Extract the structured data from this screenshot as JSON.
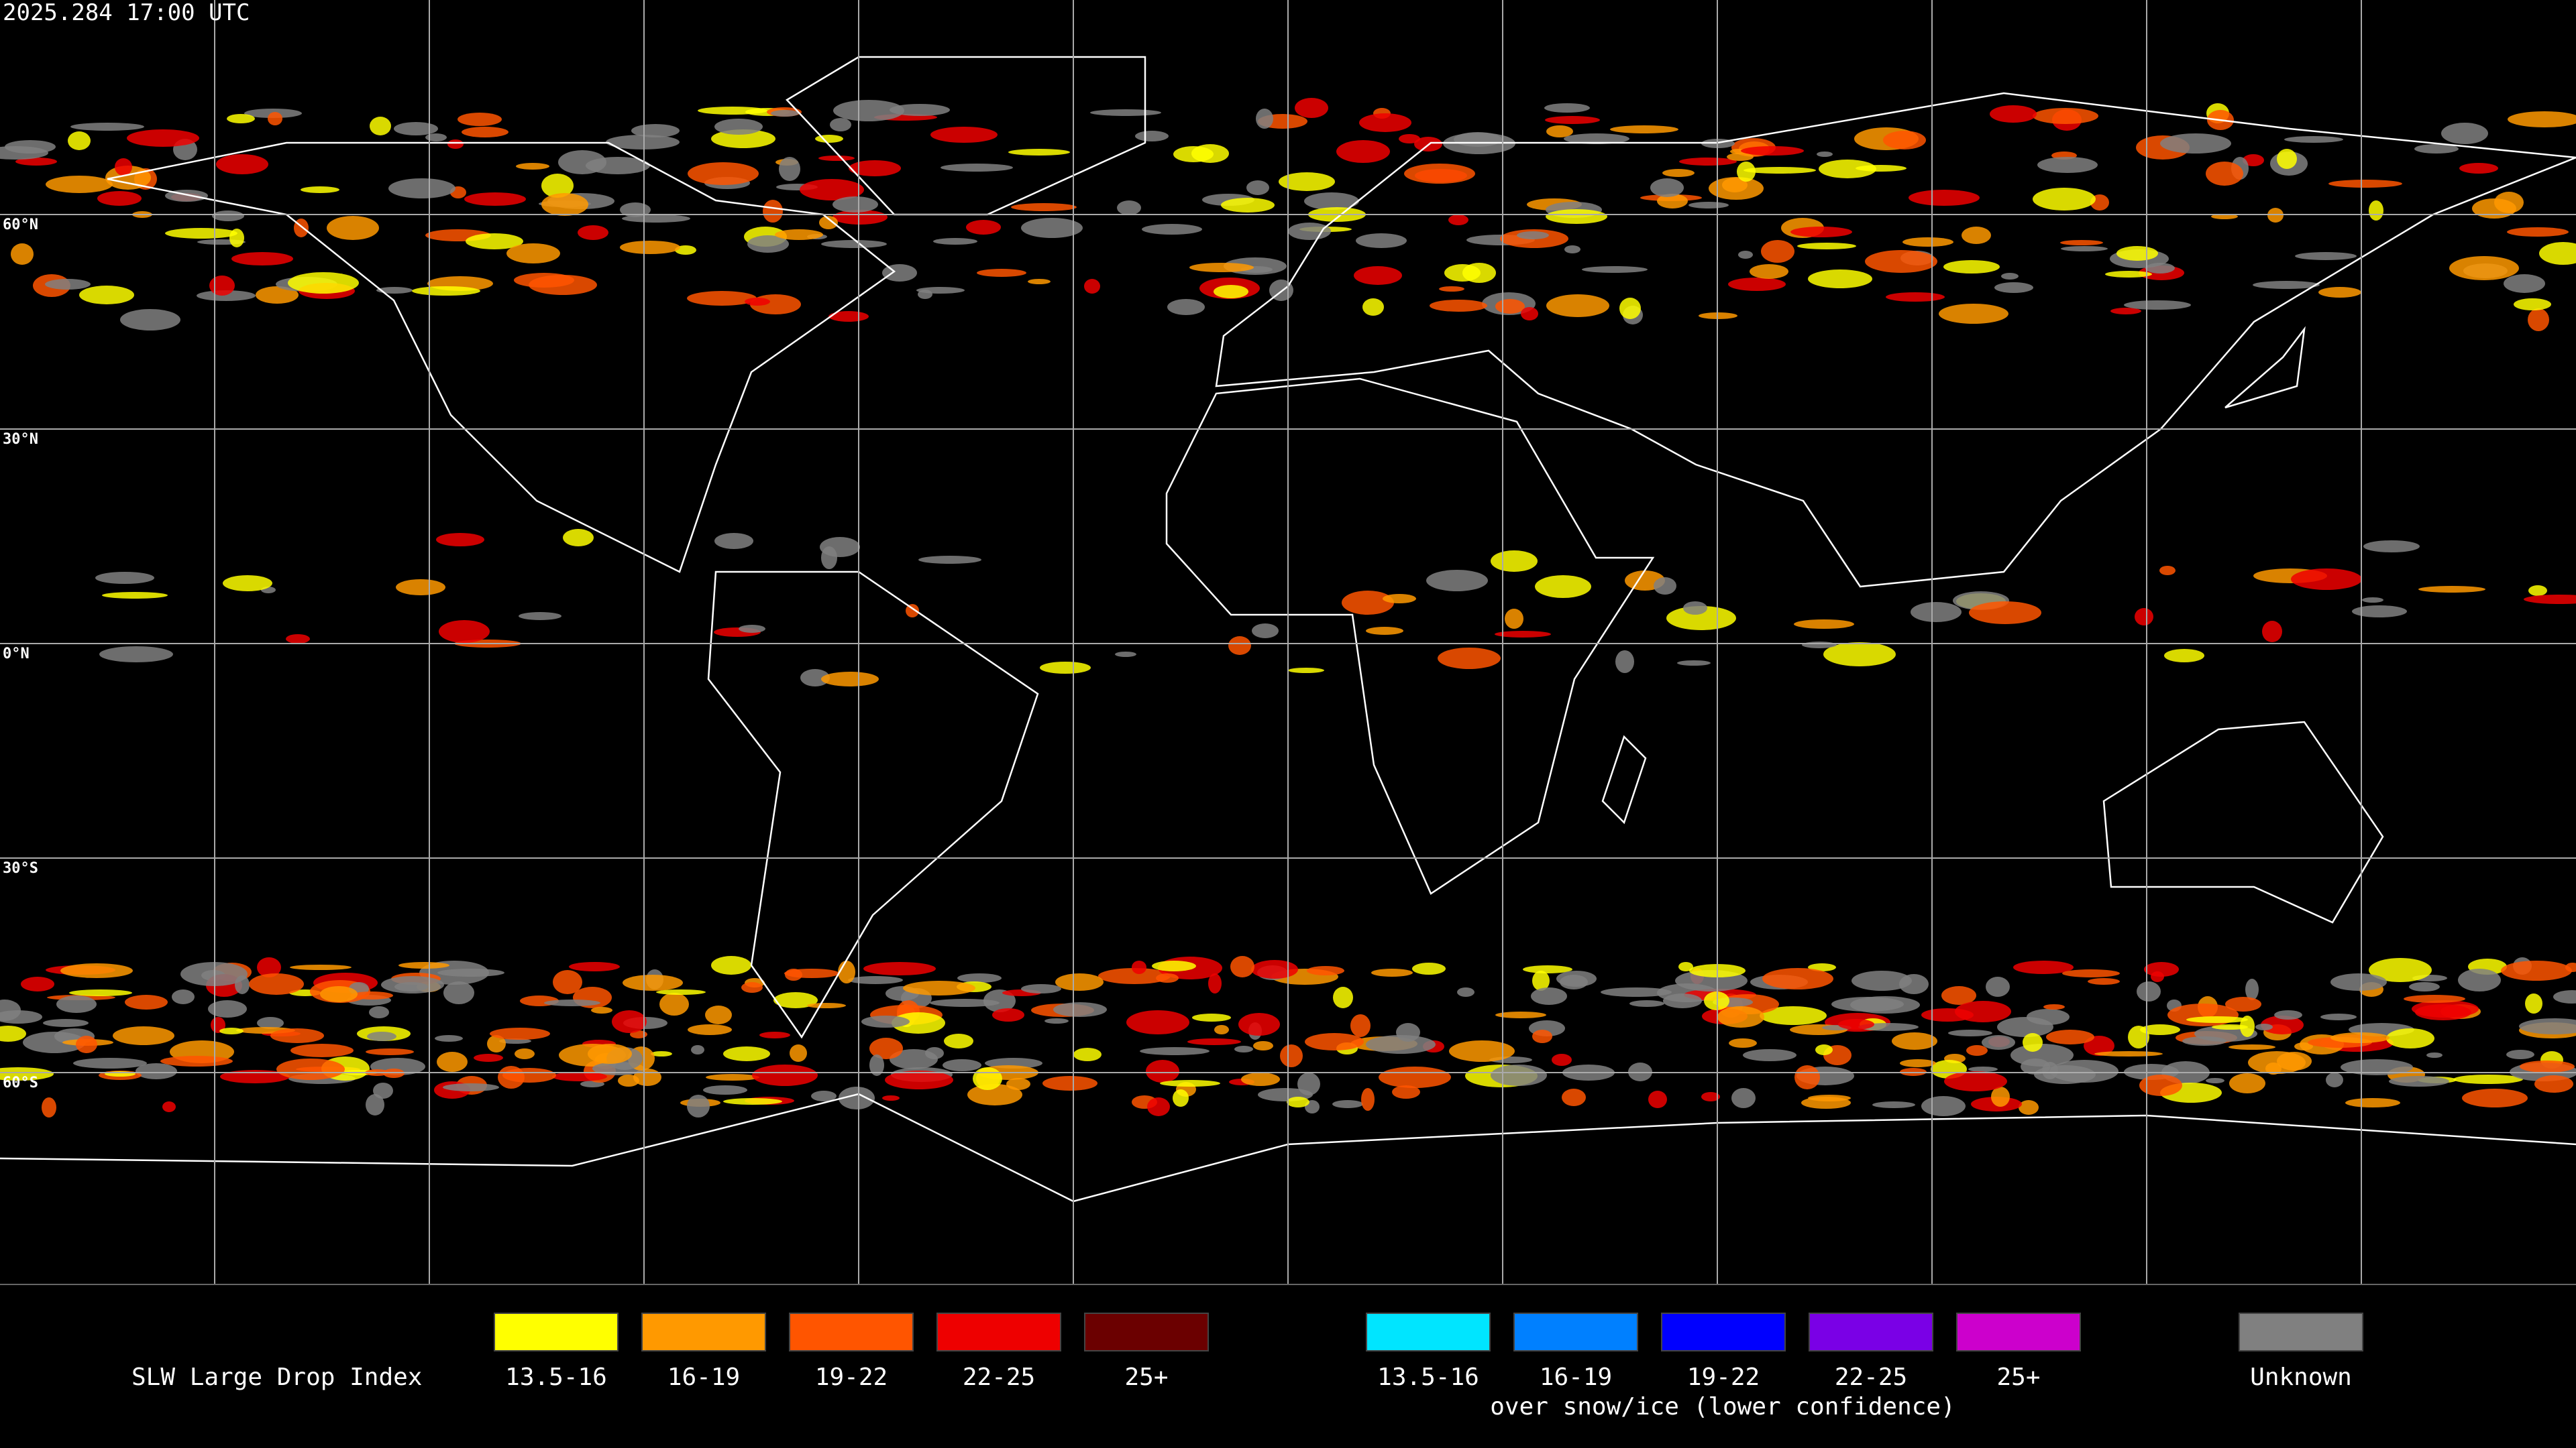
{
  "header": {
    "timestamp": "2025.284 17:00 UTC"
  },
  "map": {
    "lat_labels": [
      "60°N",
      "30°N",
      "0°N",
      "30°S",
      "60°S"
    ]
  },
  "legend": {
    "title": "SLW Large Drop Index",
    "items": [
      {
        "label": "13.5-16",
        "color": "#ffff00"
      },
      {
        "label": "16-19",
        "color": "#ff9900"
      },
      {
        "label": "19-22",
        "color": "#ff5500"
      },
      {
        "label": "22-25",
        "color": "#ee0000"
      },
      {
        "label": "25+",
        "color": "#6b0000"
      }
    ],
    "snow_items": [
      {
        "label": "13.5-16",
        "color": "#00e5ff"
      },
      {
        "label": "16-19",
        "color": "#0080ff"
      },
      {
        "label": "19-22",
        "color": "#0000ff"
      },
      {
        "label": "22-25",
        "color": "#7a00e6"
      },
      {
        "label": "25+",
        "color": "#cc00cc"
      }
    ],
    "snow_note": "over snow/ice (lower confidence)",
    "unknown": {
      "label": "Unknown",
      "color": "#808080"
    }
  }
}
